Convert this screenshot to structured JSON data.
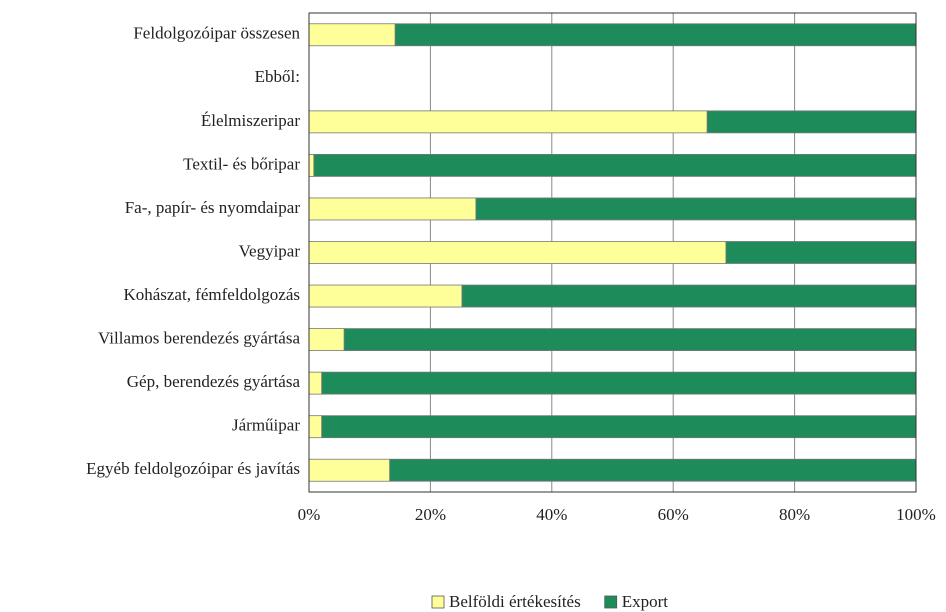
{
  "chart_data": {
    "type": "stacked_barh",
    "categories": [
      "Feldolgozóipar  összesen",
      "Ebből:",
      "Élelmiszeripar",
      "Textil- és bőripar",
      "Fa-, papír- és nyomdaipar",
      "Vegyipar",
      "Kohászat, fémfeldolgozás",
      "Villamos berendezés gyártása",
      "Gép, berendezés gyártása",
      "Járműipar",
      "Egyéb feldolgozóipar és javítás"
    ],
    "series": [
      {
        "name": "Belföldi értékesítés",
        "color": "#ffff99",
        "values": [
          14.2,
          null,
          65.6,
          0.8,
          27.5,
          68.7,
          25.2,
          5.8,
          2.1,
          2.1,
          13.3
        ]
      },
      {
        "name": "Export",
        "color": "#1e8c5a",
        "values": [
          85.8,
          null,
          34.4,
          99.2,
          72.5,
          31.3,
          74.8,
          94.2,
          97.9,
          97.9,
          86.7
        ]
      }
    ],
    "xlim": [
      0,
      100
    ],
    "xticks": [
      {
        "value": 0,
        "label": "0%"
      },
      {
        "value": 20,
        "label": "20%"
      },
      {
        "value": 40,
        "label": "40%"
      },
      {
        "value": 60,
        "label": "60%"
      },
      {
        "value": 80,
        "label": "80%"
      },
      {
        "value": 100,
        "label": "100%"
      }
    ],
    "grid": true,
    "legend": "bottom"
  }
}
